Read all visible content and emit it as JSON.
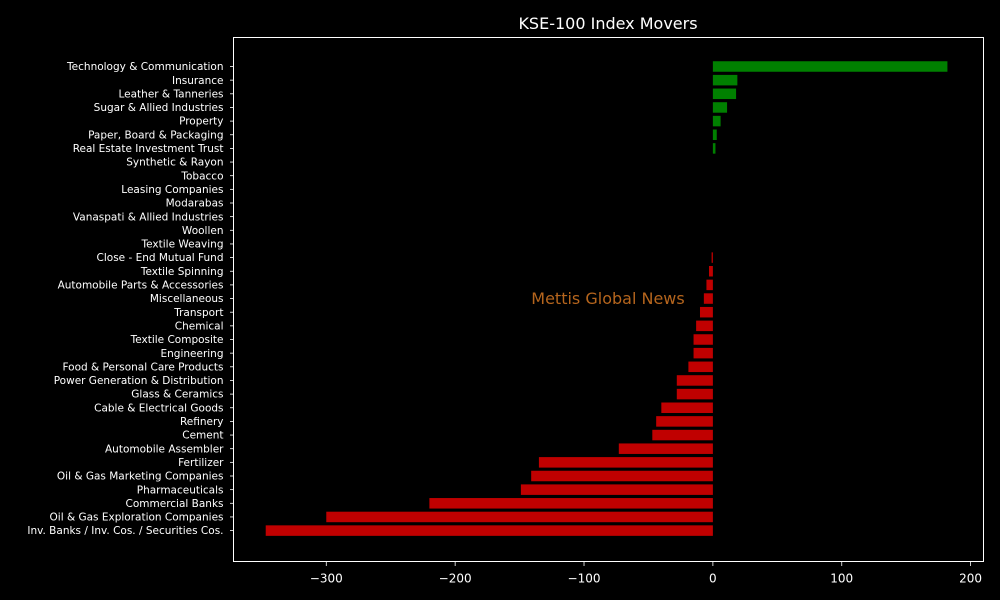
{
  "chart_data": {
    "type": "bar",
    "orientation": "horizontal",
    "title": "KSE-100 Index Movers",
    "xlabel": "",
    "ylabel": "",
    "xlim": [
      -372,
      210
    ],
    "xticks": [
      -300,
      -200,
      -100,
      0,
      100,
      200
    ],
    "xtick_labels": [
      "−300",
      "−200",
      "−100",
      "0",
      "100",
      "200"
    ],
    "grid": false,
    "annotation": "Mettis Global News",
    "categories": [
      "Technology & Communication",
      "Insurance",
      "Leather & Tanneries",
      "Sugar & Allied Industries",
      "Property",
      "Paper, Board & Packaging",
      "Real Estate Investment Trust",
      "Synthetic & Rayon",
      "Tobacco",
      "Leasing Companies",
      "Modarabas",
      "Vanaspati & Allied Industries",
      "Woollen",
      "Textile Weaving",
      "Close - End Mutual Fund",
      "Textile Spinning",
      "Automobile Parts & Accessories",
      "Miscellaneous",
      "Transport",
      "Chemical",
      "Textile Composite",
      "Engineering",
      "Food & Personal Care Products",
      "Power Generation & Distribution",
      "Glass & Ceramics",
      "Cable & Electrical Goods",
      "Refinery",
      "Cement",
      "Automobile Assembler",
      "Fertilizer",
      "Oil & Gas Marketing Companies",
      "Pharmaceuticals",
      "Commercial Banks",
      "Oil & Gas Exploration Companies",
      "Inv. Banks / Inv. Cos. / Securities Cos."
    ],
    "values": [
      182,
      19,
      18,
      11,
      6,
      3,
      2,
      0,
      0,
      0,
      0,
      0,
      0,
      0,
      -1,
      -3,
      -5,
      -7,
      -10,
      -13,
      -15,
      -15,
      -19,
      -28,
      -28,
      -40,
      -44,
      -47,
      -73,
      -135,
      -141,
      -149,
      -220,
      -300,
      -347
    ],
    "colors": {
      "positive": "#008000",
      "negative": "#c00000",
      "background": "#000000",
      "axes": "#ffffff",
      "annotation": "#b5651d"
    }
  }
}
